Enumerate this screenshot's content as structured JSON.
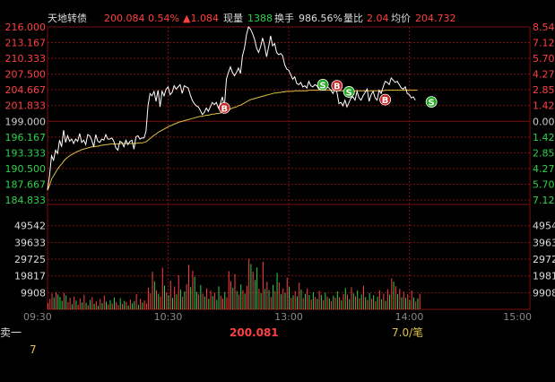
{
  "header": {
    "name": "天地转债",
    "price": "200.084",
    "pct": "0.54%",
    "chg": "▲1.084",
    "vol_label": "现量",
    "vol_value": "1388",
    "turnover_label": "换手",
    "turnover_value": "986.56%",
    "ratio_label": "量比",
    "ratio_value": "2.04",
    "avg_label": "均价",
    "avg_value": "204.732"
  },
  "colors": {
    "background": "#000000",
    "grid": "#7a1010",
    "up": "#ff4040",
    "down": "#2fd24a",
    "price_line": "#ffffff",
    "avg_line": "#e0c040",
    "buy_marker": "#cc2222",
    "sell_marker": "#22aa22"
  },
  "chart_data": [
    {
      "type": "line",
      "title": "",
      "price_ticks": [
        "216.000",
        "213.167",
        "210.333",
        "207.500",
        "204.667",
        "201.833",
        "199.000",
        "196.167",
        "193.333",
        "190.500",
        "187.667",
        "184.833"
      ],
      "pct_ticks": [
        "8.54",
        "7.12",
        "5.70",
        "4.27",
        "2.85",
        "1.42",
        "0.00",
        "1.42",
        "2.85",
        "4.27",
        "5.70",
        "7.12"
      ],
      "pct_tick_sign": [
        "up",
        "up",
        "up",
        "up",
        "up",
        "up",
        "zero",
        "down",
        "down",
        "down",
        "down",
        "down"
      ],
      "time_ticks": [
        "09:30",
        "10:30",
        "13:00",
        "14:00",
        "15:00"
      ],
      "ylim": [
        184.833,
        216.0
      ],
      "base_price": 199.0,
      "sessions": 240,
      "series": [
        {
          "values": [
            186.6,
            189.2,
            192.8,
            192.0,
            193.8,
            193.2,
            195.6,
            194.4,
            197.4,
            195.2,
            196.4,
            195.4,
            195.8,
            195.0,
            195.8,
            195.4,
            196.8,
            195.2,
            195.6,
            194.8,
            196.6,
            196.4,
            195.6,
            194.4,
            196.6,
            195.4,
            195.2,
            195.8,
            195.6,
            196.6,
            195.8,
            195.8,
            196.0,
            195.4,
            194.2,
            193.8,
            195.4,
            195.2,
            194.4,
            195.6,
            194.8,
            195.4,
            195.6,
            194.0,
            196.2,
            196.4,
            195.8,
            196.0,
            196.0,
            197.2,
            201.8,
            204.0,
            203.6,
            204.4,
            202.6,
            204.6,
            201.6,
            204.4,
            203.6,
            204.8,
            205.2,
            203.8,
            204.2,
            205.4,
            204.8,
            205.2,
            205.6,
            204.0,
            205.4,
            205.2,
            205.0,
            203.8,
            202.8,
            202.2,
            201.8,
            201.6,
            201.0,
            200.2,
            200.6,
            201.4,
            200.8,
            201.6,
            202.4,
            202.0,
            202.4,
            201.4,
            202.2,
            203.4,
            201.6,
            206.6,
            207.8,
            208.8,
            207.8,
            207.2,
            207.8,
            208.6,
            207.6,
            210.8,
            212.2,
            214.6,
            216.0,
            215.6,
            214.8,
            213.8,
            212.2,
            211.4,
            212.4,
            214.0,
            212.6,
            210.6,
            212.4,
            214.4,
            212.6,
            213.0,
            211.4,
            211.0,
            211.2,
            210.8,
            209.2,
            208.4,
            208.2,
            207.4,
            206.6,
            207.0,
            205.8,
            205.6,
            206.0,
            205.2,
            205.4,
            205.0,
            206.2,
            205.4,
            205.2,
            205.6,
            205.4,
            204.8,
            204.8,
            205.0,
            204.6,
            205.2,
            205.0,
            204.6,
            204.0,
            204.8,
            204.2,
            202.2,
            202.4,
            201.8,
            202.8,
            201.6,
            202.4,
            203.2,
            203.4,
            202.8,
            204.4,
            203.2,
            202.8,
            203.6,
            204.2,
            204.8,
            202.6,
            203.8,
            204.4,
            203.2,
            202.8,
            204.6,
            204.0,
            205.2,
            206.2,
            206.0,
            205.6,
            206.8,
            206.4,
            206.0,
            206.2,
            205.6,
            205.0,
            204.8,
            205.2,
            204.0,
            203.8,
            203.2,
            203.4,
            202.8
          ],
          "avg": [
            186.6,
            187.4,
            188.6,
            189.2,
            189.8,
            190.4,
            190.9,
            191.3,
            191.8,
            192.2,
            192.5,
            192.8,
            193.0,
            193.2,
            193.4,
            193.6,
            193.7,
            193.9,
            194.0,
            194.1,
            194.2,
            194.3,
            194.4,
            194.4,
            194.5,
            194.5,
            194.6,
            194.7,
            194.7,
            194.8,
            194.8,
            194.9,
            194.9,
            194.9,
            194.9,
            194.9,
            195.0,
            195.0,
            195.0,
            195.0,
            195.0,
            195.0,
            195.0,
            195.0,
            195.0,
            195.1,
            195.1,
            195.1,
            195.2,
            195.3,
            195.6,
            195.9,
            196.2,
            196.5,
            196.7,
            197.0,
            197.2,
            197.4,
            197.6,
            197.8,
            198.0,
            198.2,
            198.3,
            198.5,
            198.6,
            198.8,
            198.9,
            199.0,
            199.1,
            199.2,
            199.3,
            199.4,
            199.5,
            199.6,
            199.7,
            199.8,
            199.9,
            199.9,
            200.0,
            200.1,
            200.1,
            200.2,
            200.3,
            200.3,
            200.4,
            200.4,
            200.5,
            200.6,
            200.6,
            200.8,
            201.0,
            201.2,
            201.4,
            201.5,
            201.6,
            201.8,
            201.9,
            202.1,
            202.3,
            202.5,
            202.7,
            202.9,
            203.0,
            203.1,
            203.2,
            203.3,
            203.4,
            203.5,
            203.6,
            203.7,
            203.8,
            203.9,
            204.0,
            204.1,
            204.1,
            204.2,
            204.2,
            204.3,
            204.3,
            204.4,
            204.4,
            204.4,
            204.4,
            204.5,
            204.5,
            204.5,
            204.5,
            204.5,
            204.5,
            204.5,
            204.6,
            204.6,
            204.6,
            204.6,
            204.6,
            204.6,
            204.6,
            204.6,
            204.6,
            204.6,
            204.6,
            204.6,
            204.6,
            204.6,
            204.6,
            204.5,
            204.5,
            204.5,
            204.5,
            204.5,
            204.5,
            204.5,
            204.5,
            204.5,
            204.5,
            204.5,
            204.5,
            204.5,
            204.5,
            204.5,
            204.5,
            204.5,
            204.5,
            204.5,
            204.5,
            204.5,
            204.5,
            204.5,
            204.6,
            204.6,
            204.6,
            204.6,
            204.6,
            204.6,
            204.6,
            204.6,
            204.6,
            204.6,
            204.6,
            204.6,
            204.6,
            204.6,
            204.6,
            204.6,
            204.6
          ]
        }
      ],
      "markers": [
        {
          "label": "B",
          "kind": "buy",
          "index": 88,
          "value": 201.4
        },
        {
          "label": "S",
          "kind": "sell",
          "index": 137,
          "value": 205.6
        },
        {
          "label": "B",
          "kind": "buy",
          "index": 144,
          "value": 205.4
        },
        {
          "label": "S",
          "kind": "sell",
          "index": 150,
          "value": 204.3
        },
        {
          "label": "B",
          "kind": "buy",
          "index": 168,
          "value": 202.9
        },
        {
          "label": "S",
          "kind": "sell",
          "index": 191,
          "value": 202.5
        }
      ]
    },
    {
      "type": "bar",
      "title": "",
      "volume_ticks": [
        "49542",
        "39633",
        "29725",
        "19817",
        "9908"
      ],
      "ylim": [
        0,
        59450
      ],
      "values": [
        3800,
        6200,
        9400,
        7100,
        10200,
        8800,
        7400,
        5100,
        9700,
        8300,
        4200,
        6900,
        3100,
        7600,
        5200,
        2800,
        6400,
        4100,
        8700,
        3900,
        2500,
        5600,
        7300,
        3300,
        4800,
        2200,
        6100,
        3700,
        8200,
        4500,
        2900,
        5400,
        3500,
        7000,
        4300,
        2600,
        6600,
        3200,
        5000,
        4400,
        2300,
        5800,
        3600,
        4900,
        9100,
        2700,
        6300,
        4000,
        5300,
        3400,
        12800,
        9600,
        22300,
        16600,
        11400,
        9200,
        7700,
        24700,
        14000,
        9900,
        8400,
        17100,
        6800,
        13500,
        8900,
        20200,
        11800,
        7500,
        10600,
        14900,
        26400,
        13200,
        22900,
        19300,
        10400,
        8700,
        14400,
        9200,
        7600,
        12500,
        6200,
        11100,
        7900,
        9800,
        5600,
        13600,
        8200,
        6400,
        10300,
        7100,
        22600,
        16700,
        12700,
        20900,
        10900,
        8600,
        14800,
        11300,
        9400,
        13900,
        30000,
        26900,
        22300,
        17400,
        24800,
        12200,
        9600,
        28200,
        12100,
        16300,
        11400,
        7400,
        14500,
        10800,
        21600,
        15900,
        8900,
        12400,
        9700,
        18800,
        13400,
        6900,
        8300,
        10900,
        7800,
        15800,
        11700,
        6700,
        9200,
        12300,
        8500,
        5800,
        10100,
        7300,
        6200,
        11000,
        8600,
        5400,
        9800,
        7600,
        6500,
        4900,
        8100,
        6900,
        10700,
        7200,
        5300,
        9100,
        12600,
        8700,
        6100,
        13100,
        9400,
        7700,
        11200,
        6600,
        8800,
        14000,
        7200,
        5600,
        9700,
        6300,
        8400,
        4800,
        7500,
        11300,
        6000,
        9300,
        5100,
        12000,
        8600,
        18300,
        16400,
        13800,
        9000,
        12200,
        7200,
        10400,
        6700,
        8900,
        5500,
        11100,
        7100,
        4600,
        6500,
        9300
      ],
      "directions": [
        "u",
        "u",
        "u",
        "d",
        "u",
        "d",
        "d",
        "d",
        "u",
        "d",
        "u",
        "u",
        "d",
        "u",
        "d",
        "u",
        "u",
        "d",
        "u",
        "d",
        "u",
        "d",
        "u",
        "d",
        "u",
        "d",
        "u",
        "d",
        "u",
        "d",
        "u",
        "d",
        "u",
        "d",
        "u",
        "u",
        "d",
        "u",
        "d",
        "u",
        "d",
        "u",
        "d",
        "d",
        "u",
        "d",
        "u",
        "d",
        "u",
        "u",
        "u",
        "u",
        "u",
        "d",
        "u",
        "d",
        "u",
        "u",
        "d",
        "u",
        "d",
        "u",
        "d",
        "u",
        "d",
        "u",
        "d",
        "u",
        "d",
        "u",
        "u",
        "d",
        "u",
        "d",
        "d",
        "u",
        "d",
        "u",
        "d",
        "u",
        "d",
        "u",
        "d",
        "u",
        "d",
        "d",
        "u",
        "u",
        "d",
        "u",
        "u",
        "u",
        "d",
        "u",
        "d",
        "u",
        "d",
        "u",
        "d",
        "u",
        "u",
        "d",
        "u",
        "d",
        "d",
        "u",
        "d",
        "u",
        "d",
        "u",
        "d",
        "u",
        "d",
        "u",
        "d",
        "u",
        "d",
        "u",
        "d",
        "u",
        "d",
        "u",
        "d",
        "u",
        "d",
        "u",
        "d",
        "u",
        "d",
        "u",
        "d",
        "u",
        "d",
        "u",
        "d",
        "u",
        "d",
        "u",
        "d",
        "u",
        "d",
        "u",
        "d",
        "u",
        "d",
        "u",
        "d",
        "u",
        "d",
        "u",
        "d",
        "u",
        "d",
        "u",
        "d",
        "u",
        "d",
        "u",
        "d",
        "u",
        "d",
        "u",
        "d",
        "u",
        "d",
        "u",
        "d",
        "u",
        "d",
        "u",
        "d",
        "u",
        "d",
        "u",
        "d",
        "u",
        "d",
        "u",
        "d",
        "u",
        "d",
        "u",
        "d",
        "u",
        "d",
        "u",
        "d",
        "u",
        "d",
        "u",
        "d",
        "u",
        "d"
      ]
    }
  ],
  "footer": {
    "sell1_label": "卖一",
    "sell1_price": "200.081",
    "sell1_size": "7.0/笔",
    "sell1_count": "7"
  }
}
